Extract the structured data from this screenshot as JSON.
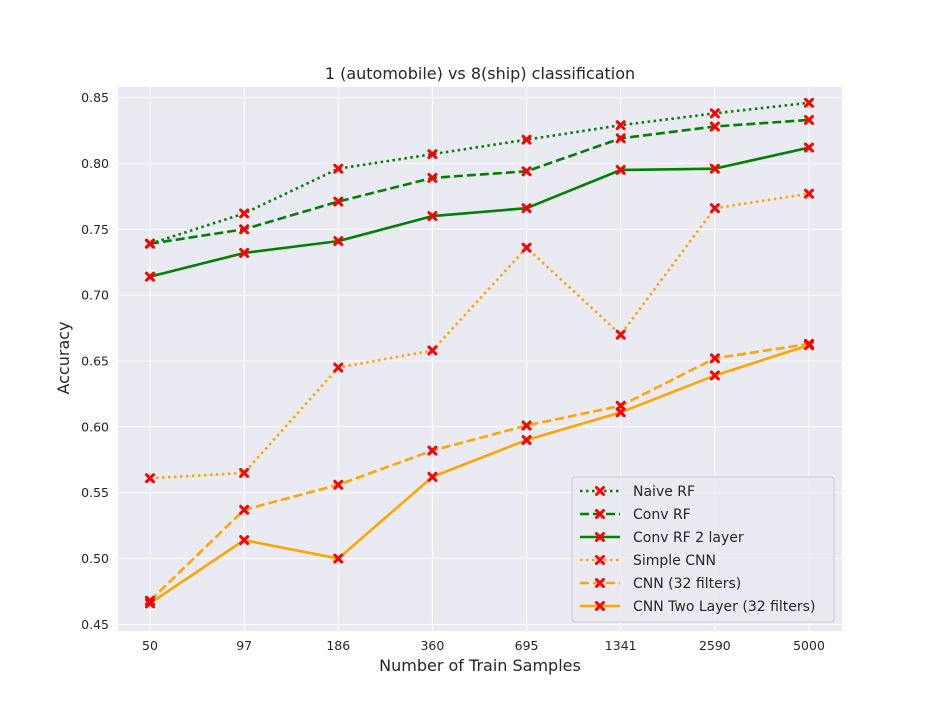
{
  "chart_data": {
    "type": "line",
    "title": "1 (automobile) vs 8(ship) classification",
    "xlabel": "Number of Train Samples",
    "ylabel": "Accuracy",
    "categories": [
      "50",
      "97",
      "186",
      "360",
      "695",
      "1341",
      "2590",
      "5000"
    ],
    "ylim": [
      0.445,
      0.858
    ],
    "yticks": [
      0.45,
      0.5,
      0.55,
      0.6,
      0.65,
      0.7,
      0.75,
      0.8,
      0.85
    ],
    "ytick_labels": [
      "0.45",
      "0.50",
      "0.55",
      "0.60",
      "0.65",
      "0.70",
      "0.75",
      "0.80",
      "0.85"
    ],
    "grid": true,
    "legend_position": "lower-right",
    "marker": "x",
    "marker_color": "#ff0000",
    "background_color": "#eaeaf2",
    "series": [
      {
        "name": "Naive RF",
        "color": "#008000",
        "style": "dotted",
        "values": [
          0.739,
          0.762,
          0.796,
          0.807,
          0.818,
          0.829,
          0.838,
          0.846
        ]
      },
      {
        "name": "Conv RF",
        "color": "#008000",
        "style": "dashed",
        "values": [
          0.739,
          0.75,
          0.771,
          0.789,
          0.794,
          0.819,
          0.828,
          0.833
        ]
      },
      {
        "name": "Conv RF 2 layer",
        "color": "#008000",
        "style": "solid",
        "values": [
          0.714,
          0.732,
          0.741,
          0.76,
          0.766,
          0.795,
          0.796,
          0.812
        ]
      },
      {
        "name": "Simple CNN",
        "color": "#ffa500",
        "style": "dotted",
        "values": [
          0.561,
          0.565,
          0.645,
          0.658,
          0.736,
          0.67,
          0.766,
          0.777
        ]
      },
      {
        "name": "CNN (32 filters)",
        "color": "#ffa500",
        "style": "dashed",
        "values": [
          0.468,
          0.537,
          0.556,
          0.582,
          0.601,
          0.616,
          0.652,
          0.663
        ]
      },
      {
        "name": "CNN Two Layer (32 filters)",
        "color": "#ffa500",
        "style": "solid",
        "values": [
          0.466,
          0.514,
          0.5,
          0.562,
          0.59,
          0.611,
          0.639,
          0.662
        ]
      }
    ]
  }
}
